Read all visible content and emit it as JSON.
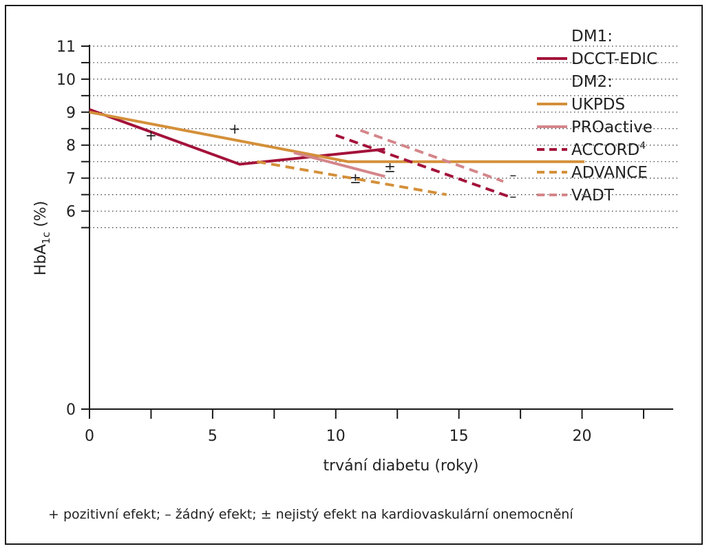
{
  "chart_data": {
    "type": "line",
    "xlabel": "trvání diabetu (roky)",
    "ylabel_main": "HbA",
    "ylabel_sub": "1c",
    "ylabel_unit": " (%)",
    "xlim": [
      0,
      22.5
    ],
    "ylim": [
      0,
      11
    ],
    "x_ticks": [
      0,
      5,
      10,
      15,
      20
    ],
    "x_minor_ticks": [
      2.5,
      7.5,
      12.5,
      17.5,
      22.5
    ],
    "y_ticks": [
      0,
      6,
      7,
      8,
      9,
      10,
      11
    ],
    "y_ticks_unlabeled": [
      5.5,
      6.5,
      7.5,
      8.5,
      9.5,
      10.5
    ],
    "grid": "horizontal dotted",
    "legend_position": "top-right",
    "legend": [
      {
        "type": "header",
        "label": "DM1:"
      },
      {
        "type": "entry",
        "series": 0,
        "label": "DCCT-EDIC"
      },
      {
        "type": "header",
        "label": "DM2:"
      },
      {
        "type": "entry",
        "series": 1,
        "label": "UKPDS"
      },
      {
        "type": "entry",
        "series": 2,
        "label": "PROactive"
      },
      {
        "type": "entry",
        "series": 3,
        "label": "ACCORD",
        "sup": "4"
      },
      {
        "type": "entry",
        "series": 4,
        "label": "ADVANCE"
      },
      {
        "type": "entry",
        "series": 5,
        "label": "VADT"
      }
    ],
    "series": [
      {
        "name": "DCCT-EDIC",
        "color": "#a3123a",
        "dash": false,
        "points": [
          [
            0,
            9.08
          ],
          [
            6.1,
            7.42
          ],
          [
            12,
            7.88
          ]
        ]
      },
      {
        "name": "UKPDS",
        "color": "#d4903a",
        "dash": false,
        "points": [
          [
            0,
            9.0
          ],
          [
            10.5,
            7.5
          ],
          [
            20.1,
            7.5
          ]
        ]
      },
      {
        "name": "PROactive",
        "color": "#d4868a",
        "dash": false,
        "points": [
          [
            8.3,
            7.77
          ],
          [
            12,
            7.05
          ]
        ]
      },
      {
        "name": "ACCORD",
        "color": "#a3123a",
        "dash": true,
        "points": [
          [
            10,
            8.3
          ],
          [
            17,
            6.45
          ]
        ]
      },
      {
        "name": "ADVANCE",
        "color": "#d4903a",
        "dash": true,
        "points": [
          [
            6.8,
            7.5
          ],
          [
            14.5,
            6.5
          ]
        ]
      },
      {
        "name": "VADT",
        "color": "#d4868a",
        "dash": true,
        "points": [
          [
            11,
            8.45
          ],
          [
            16.8,
            6.9
          ]
        ]
      }
    ],
    "annotations": [
      {
        "text": "+",
        "x": 2.5,
        "y": 8.15
      },
      {
        "text": "+",
        "x": 5.9,
        "y": 8.35
      },
      {
        "text": "±",
        "x": 10.8,
        "y": 6.85
      },
      {
        "text": "±",
        "x": 12.2,
        "y": 7.18
      },
      {
        "text": "–",
        "x": 17.2,
        "y": 6.95
      },
      {
        "text": "–",
        "x": 17.2,
        "y": 6.3
      }
    ]
  },
  "footnote": "+ pozitivní efekt; – žádný efekt; ± nejistý efekt na kardiovaskulární onemocnění"
}
